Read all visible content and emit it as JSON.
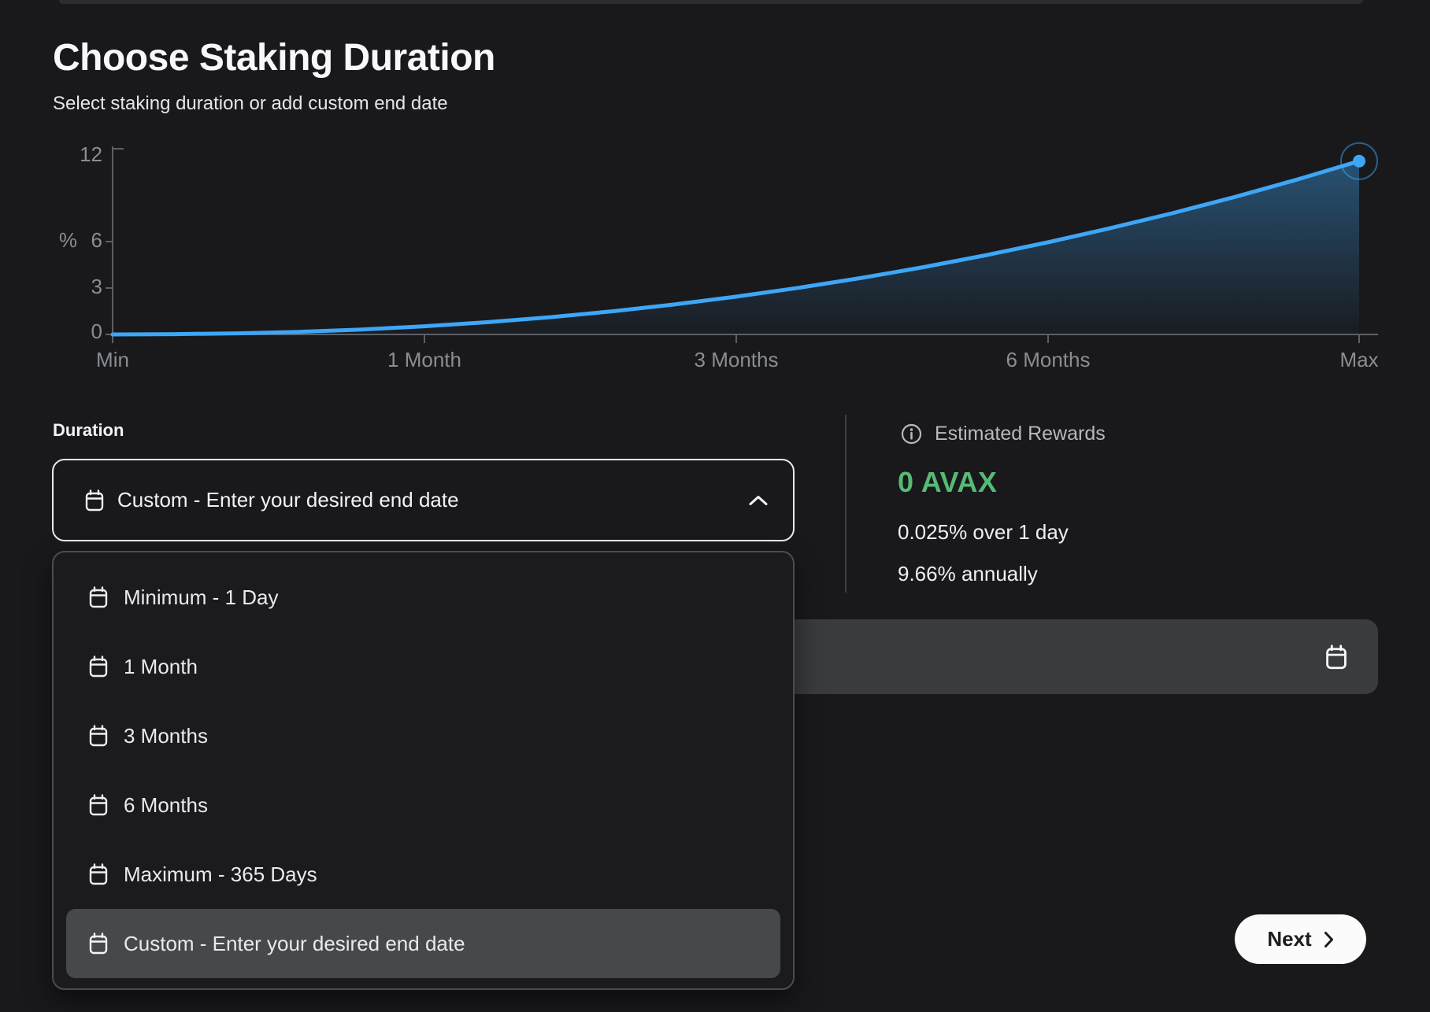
{
  "theme": {
    "background": "#19191c",
    "accent_blue": "#3ea6f6",
    "accent_green": "#57ba75",
    "highlight_gray": "#47484c",
    "input_gray": "#3a3b3f",
    "button_white": "#fbfbfc"
  },
  "header": {
    "title": "Choose Staking Duration",
    "subtitle": "Select staking duration or add custom end date"
  },
  "chart_data": {
    "type": "area",
    "title": "Estimated staking reward percentage vs duration",
    "ylabel": "%",
    "ylim": [
      0,
      12
    ],
    "yticks": [
      "12",
      "6",
      "3",
      "0"
    ],
    "xticklabels": [
      "Min",
      "1 Month",
      "3 Months",
      "6 Months",
      "Max"
    ],
    "grid": false,
    "legend": "none",
    "line_color": "#3ea6f6",
    "endpoint": {
      "pos": 1,
      "value": 11.2
    },
    "points": [
      {
        "pos": 0.0,
        "value": 0.0
      },
      {
        "pos": 0.05,
        "value": 0.02
      },
      {
        "pos": 0.1,
        "value": 0.07
      },
      {
        "pos": 0.15,
        "value": 0.17
      },
      {
        "pos": 0.2,
        "value": 0.32
      },
      {
        "pos": 0.25,
        "value": 0.53
      },
      {
        "pos": 0.3,
        "value": 0.79
      },
      {
        "pos": 0.35,
        "value": 1.11
      },
      {
        "pos": 0.4,
        "value": 1.49
      },
      {
        "pos": 0.45,
        "value": 1.93
      },
      {
        "pos": 0.5,
        "value": 2.44
      },
      {
        "pos": 0.55,
        "value": 3.01
      },
      {
        "pos": 0.6,
        "value": 3.64
      },
      {
        "pos": 0.65,
        "value": 4.34
      },
      {
        "pos": 0.7,
        "value": 5.11
      },
      {
        "pos": 0.75,
        "value": 5.95
      },
      {
        "pos": 0.8,
        "value": 6.86
      },
      {
        "pos": 0.85,
        "value": 7.83
      },
      {
        "pos": 0.9,
        "value": 8.88
      },
      {
        "pos": 0.95,
        "value": 10.0
      },
      {
        "pos": 1.0,
        "value": 11.2
      }
    ]
  },
  "form": {
    "duration_label": "Duration",
    "select": {
      "value": "Custom - Enter your desired end date",
      "state": "open"
    },
    "options": [
      "Minimum - 1 Day",
      "1 Month",
      "3 Months",
      "6 Months",
      "Maximum - 365 Days",
      "Custom - Enter your desired end date"
    ],
    "selected_option_index": 5,
    "date_input_value": ""
  },
  "rewards": {
    "label": "Estimated Rewards",
    "amount": "0 AVAX",
    "rate_short": "0.025% over 1 day",
    "rate_annual": "9.66% annually"
  },
  "actions": {
    "next_label": "Next"
  }
}
